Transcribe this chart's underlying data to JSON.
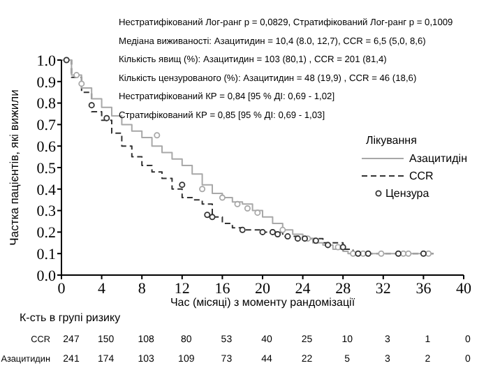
{
  "chart_data": {
    "type": "step",
    "xlabel": "Час (місяці) з моменту рандомізації",
    "ylabel": "Частка пацієнтів, які вижили",
    "legend_title": "Лікування",
    "legend": "right",
    "grid": false,
    "xlim": [
      0,
      40
    ],
    "xticks": [
      0,
      4,
      8,
      12,
      16,
      20,
      24,
      28,
      32,
      36,
      40
    ],
    "ylim": [
      0,
      1
    ],
    "yticks": [
      {
        "value": 0,
        "label": "0.0"
      },
      {
        "value": 0.1,
        "label": "0.1"
      },
      {
        "value": 0.2,
        "label": "0.2"
      },
      {
        "value": 0.3,
        "label": "0.3"
      },
      {
        "value": 0.4,
        "label": "0.4"
      },
      {
        "value": 0.5,
        "label": "0.5"
      },
      {
        "value": 0.6,
        "label": "0.6"
      },
      {
        "value": 0.7,
        "label": "0.7"
      },
      {
        "value": 0.8,
        "label": "0.8"
      },
      {
        "value": 0.9,
        "label": "0.9"
      },
      {
        "value": 1,
        "label": "1.0"
      }
    ],
    "series": [
      {
        "name": "Азацитидін",
        "color": "#a8a8a8",
        "line_style": "solid",
        "x": [
          0,
          1,
          2,
          3,
          4,
          5,
          6,
          7,
          8,
          9,
          10,
          11,
          12,
          13,
          14,
          15,
          16,
          17,
          18,
          19,
          20,
          21,
          22,
          23,
          24,
          25,
          26,
          27,
          28,
          28.5,
          37
        ],
        "values": [
          1,
          0.93,
          0.87,
          0.82,
          0.78,
          0.74,
          0.7,
          0.67,
          0.64,
          0.6,
          0.57,
          0.54,
          0.51,
          0.47,
          0.42,
          0.38,
          0.36,
          0.34,
          0.33,
          0.3,
          0.27,
          0.24,
          0.21,
          0.19,
          0.17,
          0.15,
          0.14,
          0.12,
          0.11,
          0.1,
          0.1
        ]
      },
      {
        "name": "CCR",
        "color": "#333333",
        "line_style": "dashed",
        "x": [
          0,
          1,
          2,
          3,
          4,
          5,
          6,
          7,
          8,
          9,
          10,
          11,
          12,
          13,
          14,
          15,
          16,
          17,
          18,
          20,
          22,
          24,
          26,
          28,
          29,
          37
        ],
        "values": [
          1,
          0.92,
          0.85,
          0.76,
          0.72,
          0.66,
          0.6,
          0.55,
          0.51,
          0.48,
          0.45,
          0.4,
          0.36,
          0.35,
          0.33,
          0.27,
          0.24,
          0.22,
          0.21,
          0.2,
          0.18,
          0.17,
          0.15,
          0.12,
          0.1,
          0.1
        ]
      },
      {
        "name": "Цензура",
        "type": "scatter",
        "marker": "circle",
        "color": "#333333",
        "x": [
          1.5,
          2,
          9.5,
          14,
          16,
          17.5,
          18.5,
          19.5,
          22,
          24.5,
          27.5,
          29,
          30,
          31.8,
          34,
          34.5,
          36.5,
          0.5,
          3,
          4.5,
          12,
          14.5,
          15,
          18,
          20,
          21,
          21.5,
          22.5,
          23.5,
          24.2,
          25.3,
          26.5,
          28,
          29.5,
          30.5,
          33.5,
          36
        ],
        "values": [
          0.93,
          0.89,
          0.65,
          0.4,
          0.36,
          0.33,
          0.31,
          0.29,
          0.21,
          0.17,
          0.13,
          0.1,
          0.1,
          0.1,
          0.1,
          0.1,
          0.1,
          1,
          0.79,
          0.73,
          0.42,
          0.28,
          0.27,
          0.21,
          0.2,
          0.2,
          0.19,
          0.18,
          0.17,
          0.17,
          0.16,
          0.14,
          0.13,
          0.1,
          0.1,
          0.1,
          0.1
        ],
        "colors": [
          "#a8a8a8",
          "#a8a8a8",
          "#a8a8a8",
          "#a8a8a8",
          "#a8a8a8",
          "#a8a8a8",
          "#a8a8a8",
          "#a8a8a8",
          "#a8a8a8",
          "#a8a8a8",
          "#a8a8a8",
          "#a8a8a8",
          "#a8a8a8",
          "#a8a8a8",
          "#a8a8a8",
          "#a8a8a8",
          "#a8a8a8",
          "#333333",
          "#333333",
          "#333333",
          "#333333",
          "#333333",
          "#333333",
          "#333333",
          "#333333",
          "#333333",
          "#333333",
          "#333333",
          "#333333",
          "#333333",
          "#333333",
          "#333333",
          "#333333",
          "#333333",
          "#333333",
          "#333333",
          "#333333"
        ]
      }
    ],
    "annotations": [
      "Нестратифікований Лог-ранг p = 0,0829, Стратифікований Лог-ранг p = 0,1009",
      "Медіана виживаності: Азацитидин = 10,4 (8.0, 12,7), CCR = 6,5 (5,0, 8,6)",
      "Кількість явищ (%): Азацитидин = 103 (80,1) , CCR = 201 (81,4)",
      "Кількість цензурованого (%): Азацитидин = 48 (19,9) , CCR = 46 (18,6)",
      "Нестратифікований КР = 0,84  [95 % ДІ: 0,69 - 1,02]",
      "Стратифікований КР = 0,85 [95 % ДІ: 0,69 - 1,03]",
      "К-сть в групі ризику",
      "CCR 247 150 108 80 53 40 25 10 3 1 0",
      "Азацитидин 241 174 103 109 73 44 22 5 3 2 0"
    ]
  }
}
